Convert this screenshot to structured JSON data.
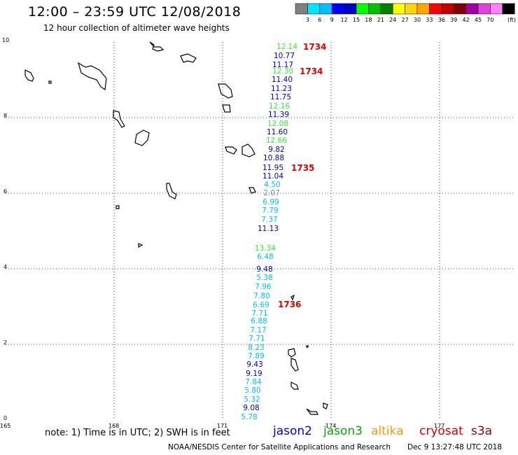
{
  "header": {
    "title": "12:00 – 23:59 UTC 12/08/2018",
    "subtitle": "12 hour collection of altimeter wave heights"
  },
  "scale": {
    "colors": [
      "#808080",
      "#00e5ff",
      "#00bfff",
      "#0000ff",
      "#0000c0",
      "#00ff00",
      "#00c000",
      "#008000",
      "#ffff00",
      "#ffd700",
      "#ffa500",
      "#ff0000",
      "#c00000",
      "#800000",
      "#a000a0",
      "#e040e0",
      "#ff80ff",
      "#000000"
    ],
    "labels": [
      "3",
      "6",
      "9",
      "12",
      "15",
      "18",
      "21",
      "24",
      "27",
      "30",
      "33",
      "36",
      "39",
      "42",
      "45",
      "70"
    ],
    "unit": "(ft)"
  },
  "axes": {
    "x_ticks": [
      "165",
      "168",
      "171",
      "174",
      "177"
    ],
    "y_ticks": [
      "0",
      "2",
      "4",
      "6",
      "8",
      "10"
    ]
  },
  "observations": [
    {
      "v": "12.14",
      "c": "#33ee33"
    },
    {
      "v": "10.77",
      "c": "#0000cc"
    },
    {
      "v": "11.17",
      "c": "#0000cc"
    },
    {
      "v": "12.30",
      "c": "#33ee33"
    },
    {
      "v": "11.40",
      "c": "#0000cc"
    },
    {
      "v": "11.23",
      "c": "#0000cc"
    },
    {
      "v": "11.75",
      "c": "#0000cc"
    },
    {
      "v": "12.16",
      "c": "#33ee33"
    },
    {
      "v": "11.39",
      "c": "#0000cc"
    },
    {
      "v": "12.08",
      "c": "#33ee33"
    },
    {
      "v": "11.60",
      "c": "#0000cc"
    },
    {
      "v": "12.66",
      "c": "#33ee33"
    },
    {
      "v": "9.82",
      "c": "#0000cc"
    },
    {
      "v": "10.88",
      "c": "#0000cc"
    },
    {
      "v": "11.95",
      "c": "#0000cc"
    },
    {
      "v": "11.04",
      "c": "#0000cc"
    },
    {
      "v": "4.50",
      "c": "#00bfff"
    },
    {
      "v": "2.07",
      "c": "#888888"
    },
    {
      "v": "6.99",
      "c": "#00bfff"
    },
    {
      "v": "7.79",
      "c": "#00bfff"
    },
    {
      "v": "7.37",
      "c": "#00bfff"
    },
    {
      "v": "11.13",
      "c": "#0000cc"
    },
    {
      "v": "13.34",
      "c": "#33ee33"
    },
    {
      "v": "6.48",
      "c": "#00bfff"
    },
    {
      "v": "9.48",
      "c": "#0000cc"
    },
    {
      "v": "5.38",
      "c": "#00bfff"
    },
    {
      "v": "7.96",
      "c": "#00bfff"
    },
    {
      "v": "7.80",
      "c": "#00bfff"
    },
    {
      "v": "6.69",
      "c": "#00bfff"
    },
    {
      "v": "7.71",
      "c": "#00bfff"
    },
    {
      "v": "6.88",
      "c": "#00bfff"
    },
    {
      "v": "7.17",
      "c": "#00bfff"
    },
    {
      "v": "7.71",
      "c": "#00bfff"
    },
    {
      "v": "8.23",
      "c": "#00bfff"
    },
    {
      "v": "7.89",
      "c": "#00bfff"
    },
    {
      "v": "9.43",
      "c": "#0000cc"
    },
    {
      "v": "9.19",
      "c": "#0000cc"
    },
    {
      "v": "7.84",
      "c": "#00bfff"
    },
    {
      "v": "5.80",
      "c": "#00bfff"
    },
    {
      "v": "5.32",
      "c": "#00bfff"
    },
    {
      "v": "9.08",
      "c": "#0000cc"
    },
    {
      "v": "5.78",
      "c": "#00bfff"
    }
  ],
  "times": [
    "1734",
    "1734",
    "1735",
    "1736"
  ],
  "time_color": "#dd0000",
  "footer": {
    "note": "note: 1) Time is in UTC; 2) SWH is in feet",
    "satellites": [
      {
        "name": "jason2",
        "color": "#0000dd"
      },
      {
        "name": "jason3",
        "color": "#00aa00"
      },
      {
        "name": "altika",
        "color": "#ff9900"
      },
      {
        "name": "cryosat",
        "color": "#cc0000"
      },
      {
        "name": "s3a",
        "color": "#990000"
      }
    ],
    "credit": "NOAA/NESDIS Center for Satellite Applications and Research",
    "timestamp": "Dec  9 13:27:48 UTC 2018"
  }
}
